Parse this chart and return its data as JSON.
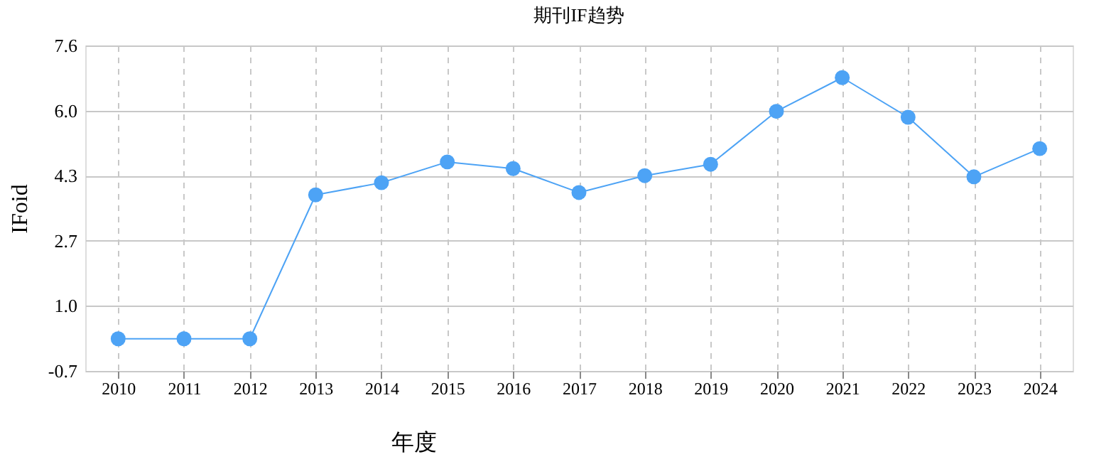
{
  "chart_data": {
    "type": "line",
    "title": "期刊IF趋势",
    "xlabel": "年度",
    "ylabel": "IFoid",
    "categories": [
      "2010",
      "2011",
      "2012",
      "2013",
      "2014",
      "2015",
      "2016",
      "2017",
      "2018",
      "2019",
      "2020",
      "2021",
      "2022",
      "2023",
      "2024"
    ],
    "series": [
      {
        "color": "#4da3f5",
        "values": [
          0.16,
          0.16,
          0.16,
          3.83,
          4.14,
          4.67,
          4.5,
          3.89,
          4.32,
          4.61,
          5.96,
          6.82,
          5.81,
          4.29,
          5.01
        ]
      }
    ],
    "ylim": [
      -0.66,
      7.64
    ],
    "yticks": [
      {
        "value": -0.66,
        "label": "-0.7"
      },
      {
        "value": 1.0,
        "label": "1.0"
      },
      {
        "value": 2.66,
        "label": "2.7"
      },
      {
        "value": 4.32,
        "label": "4.3"
      },
      {
        "value": 5.98,
        "label": "6.0"
      },
      {
        "value": 7.64,
        "label": "7.6"
      }
    ],
    "grid": true,
    "marker": "circle",
    "line_style": "solid"
  }
}
